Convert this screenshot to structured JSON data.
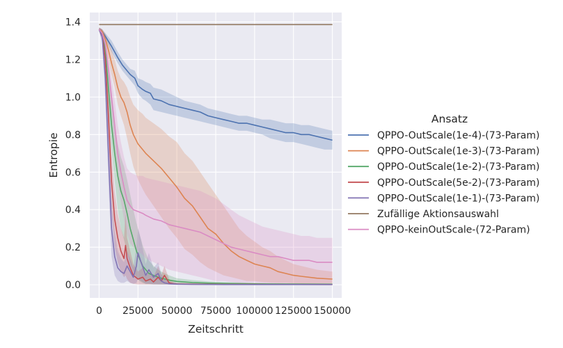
{
  "chart_data": {
    "type": "line",
    "title": "",
    "xlabel": "Zeitschritt",
    "ylabel": "Entropie",
    "xlim": [
      -6000,
      156000
    ],
    "ylim": [
      -0.07,
      1.45
    ],
    "xticks": [
      0,
      25000,
      50000,
      75000,
      100000,
      125000,
      150000
    ],
    "xtick_labels": [
      "0",
      "25000",
      "50000",
      "75000",
      "100000",
      "125000",
      "150000"
    ],
    "yticks": [
      0.0,
      0.2,
      0.4,
      0.6,
      0.8,
      1.0,
      1.2,
      1.4
    ],
    "ytick_labels": [
      "0.0",
      "0.2",
      "0.4",
      "0.6",
      "0.8",
      "1.0",
      "1.2",
      "1.4"
    ],
    "grid": true,
    "background": "#eaeaf2",
    "legend_title": "Ansatz",
    "legend_position": "right",
    "series": [
      {
        "name": "QPPO-OutScale(1e-4)-(73-Param)",
        "color": "#4c72b0",
        "x": [
          0,
          2000,
          5000,
          8000,
          10000,
          12000,
          15000,
          18000,
          20000,
          23000,
          25000,
          28000,
          30000,
          33000,
          35000,
          40000,
          45000,
          50000,
          55000,
          60000,
          65000,
          70000,
          75000,
          80000,
          85000,
          90000,
          95000,
          100000,
          105000,
          110000,
          115000,
          120000,
          125000,
          130000,
          135000,
          140000,
          145000,
          150000
        ],
        "y": [
          1.36,
          1.35,
          1.31,
          1.27,
          1.24,
          1.21,
          1.17,
          1.14,
          1.12,
          1.1,
          1.06,
          1.04,
          1.03,
          1.02,
          0.99,
          0.98,
          0.96,
          0.95,
          0.94,
          0.93,
          0.92,
          0.9,
          0.89,
          0.88,
          0.87,
          0.86,
          0.86,
          0.85,
          0.84,
          0.83,
          0.82,
          0.81,
          0.81,
          0.8,
          0.8,
          0.79,
          0.78,
          0.77
        ],
        "lower": [
          1.35,
          1.34,
          1.29,
          1.24,
          1.21,
          1.18,
          1.14,
          1.11,
          1.09,
          1.06,
          1.02,
          0.99,
          0.98,
          0.96,
          0.93,
          0.92,
          0.91,
          0.9,
          0.89,
          0.88,
          0.87,
          0.86,
          0.85,
          0.84,
          0.83,
          0.82,
          0.82,
          0.81,
          0.8,
          0.78,
          0.77,
          0.76,
          0.76,
          0.75,
          0.74,
          0.73,
          0.72,
          0.72
        ],
        "upper": [
          1.37,
          1.36,
          1.33,
          1.3,
          1.27,
          1.24,
          1.2,
          1.17,
          1.15,
          1.14,
          1.1,
          1.09,
          1.08,
          1.07,
          1.05,
          1.04,
          1.02,
          1.0,
          0.98,
          0.97,
          0.96,
          0.94,
          0.93,
          0.92,
          0.91,
          0.9,
          0.9,
          0.89,
          0.88,
          0.88,
          0.87,
          0.86,
          0.86,
          0.85,
          0.85,
          0.84,
          0.83,
          0.82
        ]
      },
      {
        "name": "QPPO-OutScale(1e-3)-(73-Param)",
        "color": "#dd8452",
        "x": [
          0,
          2000,
          4000,
          6000,
          8000,
          10000,
          12000,
          14000,
          16000,
          18000,
          20000,
          22000,
          25000,
          28000,
          30000,
          35000,
          40000,
          45000,
          50000,
          55000,
          60000,
          65000,
          70000,
          75000,
          80000,
          85000,
          90000,
          95000,
          100000,
          105000,
          110000,
          115000,
          120000,
          125000,
          130000,
          140000,
          150000
        ],
        "y": [
          1.36,
          1.35,
          1.31,
          1.25,
          1.18,
          1.12,
          1.05,
          1.0,
          0.97,
          0.92,
          0.85,
          0.8,
          0.75,
          0.72,
          0.7,
          0.66,
          0.62,
          0.57,
          0.52,
          0.46,
          0.42,
          0.36,
          0.3,
          0.27,
          0.22,
          0.18,
          0.15,
          0.13,
          0.11,
          0.1,
          0.09,
          0.07,
          0.06,
          0.05,
          0.045,
          0.035,
          0.03
        ],
        "lower": [
          1.35,
          1.33,
          1.28,
          1.2,
          1.12,
          1.05,
          0.96,
          0.9,
          0.85,
          0.78,
          0.7,
          0.63,
          0.56,
          0.51,
          0.48,
          0.42,
          0.36,
          0.3,
          0.25,
          0.19,
          0.16,
          0.12,
          0.09,
          0.07,
          0.05,
          0.04,
          0.03,
          0.02,
          0.02,
          0.015,
          0.012,
          0.01,
          0.01,
          0.008,
          0.006,
          0.005,
          0.004
        ],
        "upper": [
          1.37,
          1.36,
          1.34,
          1.3,
          1.25,
          1.2,
          1.14,
          1.1,
          1.08,
          1.05,
          1.0,
          0.96,
          0.93,
          0.91,
          0.89,
          0.86,
          0.83,
          0.79,
          0.76,
          0.7,
          0.66,
          0.6,
          0.54,
          0.48,
          0.42,
          0.36,
          0.3,
          0.26,
          0.23,
          0.2,
          0.18,
          0.15,
          0.13,
          0.11,
          0.1,
          0.08,
          0.07
        ]
      },
      {
        "name": "QPPO-OutScale(1e-2)-(73-Param)",
        "color": "#55a868",
        "x": [
          0,
          2000,
          4000,
          6000,
          8000,
          10000,
          12000,
          14000,
          16000,
          18000,
          20000,
          22000,
          24000,
          26000,
          28000,
          30000,
          32000,
          35000,
          38000,
          40000,
          45000,
          50000,
          60000,
          70000,
          80000,
          100000,
          120000,
          150000
        ],
        "y": [
          1.36,
          1.34,
          1.25,
          1.05,
          0.85,
          0.7,
          0.58,
          0.5,
          0.45,
          0.38,
          0.3,
          0.24,
          0.18,
          0.14,
          0.1,
          0.08,
          0.06,
          0.05,
          0.04,
          0.035,
          0.025,
          0.018,
          0.012,
          0.009,
          0.007,
          0.005,
          0.004,
          0.003
        ],
        "lower": [
          1.35,
          1.32,
          1.2,
          0.95,
          0.72,
          0.55,
          0.4,
          0.3,
          0.24,
          0.17,
          0.11,
          0.07,
          0.04,
          0.02,
          0.01,
          0.005,
          0.004,
          0.003,
          0.002,
          0.002,
          0.001,
          0.001,
          0.001,
          0.001,
          0.001,
          0.001,
          0.001,
          0.001
        ],
        "upper": [
          1.37,
          1.36,
          1.3,
          1.15,
          0.98,
          0.85,
          0.75,
          0.68,
          0.63,
          0.56,
          0.48,
          0.4,
          0.33,
          0.27,
          0.21,
          0.17,
          0.13,
          0.1,
          0.08,
          0.07,
          0.05,
          0.035,
          0.025,
          0.018,
          0.014,
          0.01,
          0.008,
          0.006
        ]
      },
      {
        "name": "QPPO-OutScale(5e-2)-(73-Param)",
        "color": "#c44e52",
        "x": [
          0,
          2000,
          4000,
          6000,
          8000,
          10000,
          12000,
          14000,
          16000,
          17000,
          18000,
          20000,
          22000,
          25000,
          28000,
          30000,
          33000,
          35000,
          38000,
          40000,
          42000,
          45000,
          48000,
          50000,
          60000,
          80000,
          100000,
          150000
        ],
        "y": [
          1.36,
          1.33,
          1.2,
          0.9,
          0.55,
          0.35,
          0.25,
          0.18,
          0.14,
          0.21,
          0.14,
          0.09,
          0.05,
          0.03,
          0.04,
          0.02,
          0.03,
          0.015,
          0.04,
          0.02,
          0.05,
          0.01,
          0.005,
          0.004,
          0.003,
          0.002,
          0.002,
          0.001
        ],
        "lower": [
          1.35,
          1.3,
          1.12,
          0.78,
          0.4,
          0.2,
          0.12,
          0.07,
          0.04,
          0.05,
          0.03,
          0.01,
          0.005,
          0.002,
          0.002,
          0.001,
          0.001,
          0.001,
          0.001,
          0.001,
          0.001,
          0.001,
          0.001,
          0.001,
          0.001,
          0.001,
          0.001,
          0.001
        ],
        "upper": [
          1.37,
          1.36,
          1.28,
          1.02,
          0.7,
          0.5,
          0.38,
          0.3,
          0.25,
          0.38,
          0.25,
          0.18,
          0.11,
          0.07,
          0.09,
          0.05,
          0.07,
          0.04,
          0.1,
          0.05,
          0.1,
          0.03,
          0.015,
          0.01,
          0.008,
          0.005,
          0.004,
          0.003
        ]
      },
      {
        "name": "QPPO-OutScale(1e-1)-(73-Param)",
        "color": "#8172b3",
        "x": [
          0,
          2000,
          4000,
          6000,
          8000,
          10000,
          12000,
          14000,
          16000,
          18000,
          20000,
          22000,
          24000,
          25000,
          27000,
          30000,
          32000,
          35000,
          38000,
          40000,
          42000,
          45000,
          50000,
          60000,
          80000,
          100000,
          150000
        ],
        "y": [
          1.36,
          1.32,
          1.1,
          0.7,
          0.3,
          0.15,
          0.09,
          0.07,
          0.06,
          0.1,
          0.07,
          0.04,
          0.1,
          0.17,
          0.12,
          0.05,
          0.08,
          0.04,
          0.06,
          0.02,
          0.01,
          0.005,
          0.003,
          0.002,
          0.001,
          0.001,
          0.001
        ],
        "lower": [
          1.35,
          1.29,
          1.0,
          0.55,
          0.15,
          0.05,
          0.02,
          0.01,
          0.01,
          0.02,
          0.01,
          0.005,
          0.01,
          0.03,
          0.02,
          0.005,
          0.005,
          0.002,
          0.002,
          0.001,
          0.001,
          0.001,
          0.001,
          0.001,
          0.001,
          0.001,
          0.001
        ],
        "upper": [
          1.37,
          1.35,
          1.2,
          0.85,
          0.45,
          0.28,
          0.18,
          0.14,
          0.12,
          0.18,
          0.14,
          0.09,
          0.2,
          0.3,
          0.24,
          0.11,
          0.17,
          0.09,
          0.12,
          0.06,
          0.03,
          0.015,
          0.008,
          0.005,
          0.003,
          0.002,
          0.002
        ]
      },
      {
        "name": "Zufällige Aktionsauswahl",
        "color": "#937860",
        "x": [
          0,
          150000
        ],
        "y": [
          1.386,
          1.386
        ]
      },
      {
        "name": "QPPO-keinOutScale-(72-Param)",
        "color": "#da8bc3",
        "x": [
          0,
          2000,
          4000,
          6000,
          8000,
          10000,
          12000,
          14000,
          16000,
          18000,
          20000,
          22000,
          25000,
          28000,
          30000,
          35000,
          40000,
          45000,
          50000,
          55000,
          60000,
          65000,
          70000,
          75000,
          80000,
          85000,
          90000,
          95000,
          100000,
          105000,
          110000,
          115000,
          120000,
          125000,
          130000,
          135000,
          140000,
          145000,
          150000
        ],
        "y": [
          1.36,
          1.34,
          1.28,
          1.15,
          1.0,
          0.85,
          0.7,
          0.6,
          0.52,
          0.45,
          0.42,
          0.4,
          0.39,
          0.38,
          0.37,
          0.35,
          0.34,
          0.32,
          0.31,
          0.3,
          0.29,
          0.28,
          0.26,
          0.24,
          0.22,
          0.2,
          0.19,
          0.18,
          0.17,
          0.16,
          0.15,
          0.15,
          0.14,
          0.13,
          0.13,
          0.13,
          0.12,
          0.12,
          0.12
        ],
        "lower": [
          1.35,
          1.32,
          1.24,
          1.08,
          0.9,
          0.72,
          0.55,
          0.44,
          0.35,
          0.27,
          0.22,
          0.2,
          0.18,
          0.16,
          0.14,
          0.12,
          0.1,
          0.08,
          0.07,
          0.06,
          0.05,
          0.04,
          0.03,
          0.02,
          0.02,
          0.015,
          0.01,
          0.01,
          0.01,
          0.008,
          0.006,
          0.005,
          0.005,
          0.004,
          0.004,
          0.003,
          0.003,
          0.003,
          0.003
        ],
        "upper": [
          1.37,
          1.36,
          1.32,
          1.22,
          1.1,
          0.98,
          0.85,
          0.76,
          0.68,
          0.62,
          0.6,
          0.59,
          0.58,
          0.58,
          0.57,
          0.56,
          0.55,
          0.54,
          0.53,
          0.52,
          0.51,
          0.5,
          0.48,
          0.46,
          0.43,
          0.4,
          0.37,
          0.35,
          0.33,
          0.31,
          0.3,
          0.29,
          0.28,
          0.27,
          0.26,
          0.26,
          0.25,
          0.25,
          0.25
        ]
      }
    ]
  }
}
